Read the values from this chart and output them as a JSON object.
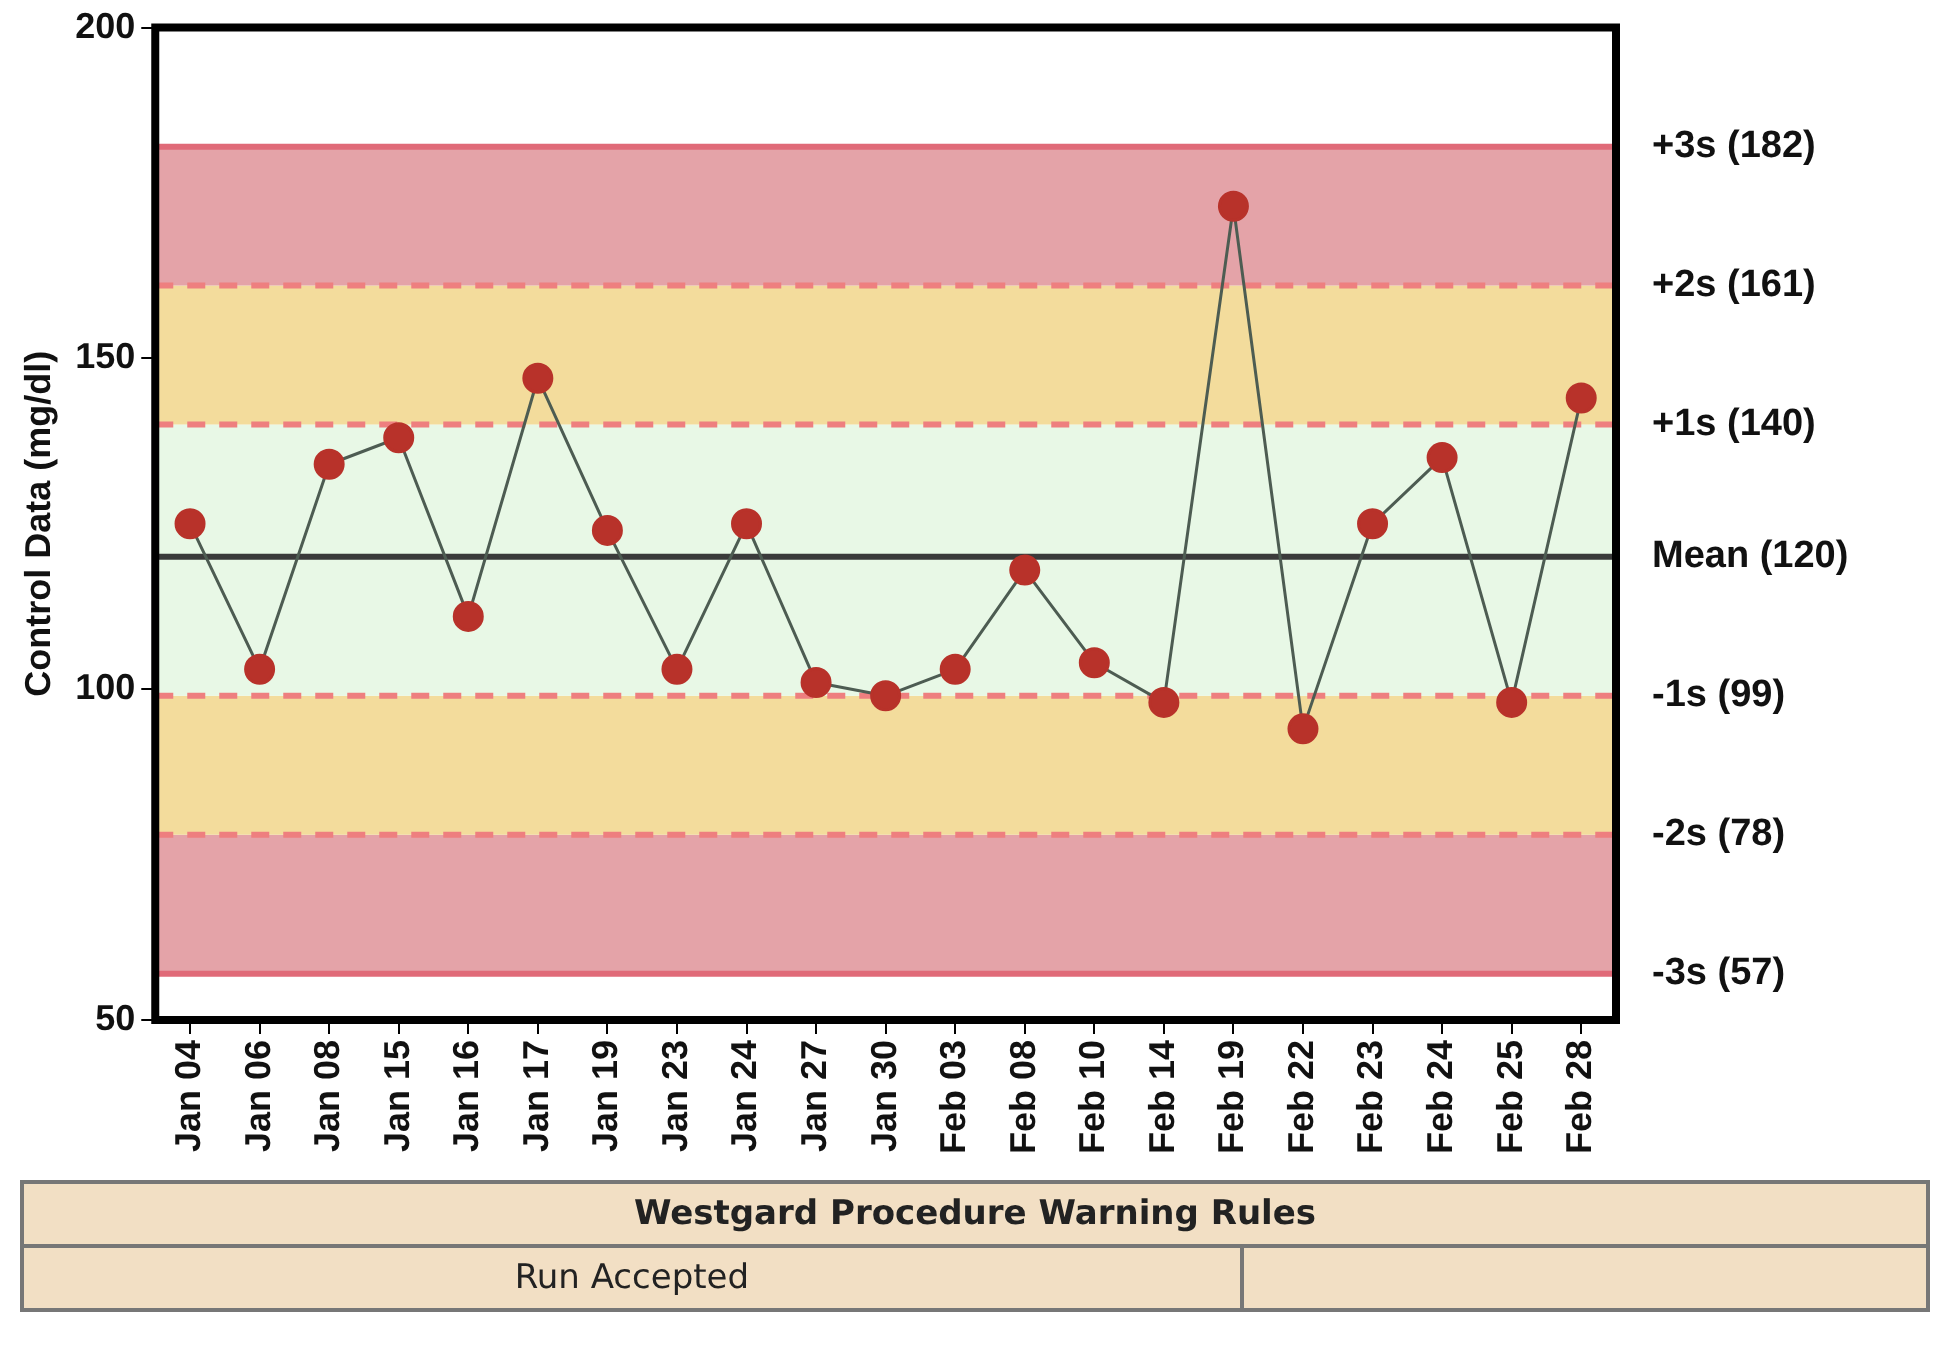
{
  "chart_data": {
    "type": "line",
    "ylabel": "Control Data (mg/dl)",
    "categories": [
      "Jan 04",
      "Jan 06",
      "Jan 08",
      "Jan 15",
      "Jan 16",
      "Jan 17",
      "Jan 19",
      "Jan 23",
      "Jan 24",
      "Jan 27",
      "Jan 30",
      "Feb 03",
      "Feb 08",
      "Feb 10",
      "Feb 14",
      "Feb 19",
      "Feb 22",
      "Feb 23",
      "Feb 24",
      "Feb 25",
      "Feb 28"
    ],
    "series": [
      {
        "color": "#b8322a",
        "values": [
          125,
          103,
          134,
          138,
          111,
          147,
          124,
          103,
          125,
          101,
          99,
          103,
          118,
          104,
          98,
          173,
          94,
          125,
          135,
          98,
          144
        ]
      }
    ],
    "ylim": [
      50,
      200
    ],
    "yticks": [
      50,
      100,
      150,
      200
    ],
    "grid": false,
    "legend": false,
    "marker": "circle",
    "line_style": "solid",
    "bands": [
      {
        "axis": "y",
        "from": 57,
        "to": 78,
        "color": "#e4a3a8"
      },
      {
        "axis": "y",
        "from": 78,
        "to": 99,
        "color": "#f3dc9c"
      },
      {
        "axis": "y",
        "from": 99,
        "to": 140,
        "color": "#e8f8e6"
      },
      {
        "axis": "y",
        "from": 140,
        "to": 161,
        "color": "#f3dc9c"
      },
      {
        "axis": "y",
        "from": 161,
        "to": 182,
        "color": "#e4a3a8"
      }
    ],
    "ref_lines": [
      {
        "axis": "y",
        "value": 182,
        "label": "+3s (182)",
        "color": "#e06a78",
        "line_style": "solid"
      },
      {
        "axis": "y",
        "value": 161,
        "label": "+2s (161)",
        "color": "#ee7f7f",
        "line_style": "dashed"
      },
      {
        "axis": "y",
        "value": 140,
        "label": "+1s (140)",
        "color": "#ee7f7f",
        "line_style": "dashed"
      },
      {
        "axis": "y",
        "value": 120,
        "label": "Mean (120)",
        "color": "#3a3a3a",
        "line_style": "solid"
      },
      {
        "axis": "y",
        "value": 99,
        "label": "-1s (99)",
        "color": "#ee7f7f",
        "line_style": "dashed"
      },
      {
        "axis": "y",
        "value": 78,
        "label": "-2s (78)",
        "color": "#ee7f7f",
        "line_style": "dashed"
      },
      {
        "axis": "y",
        "value": 57,
        "label": "-3s (57)",
        "color": "#e06a78",
        "line_style": "solid"
      }
    ],
    "annotations": [
      "Westgard Procedure Warning Rules",
      "Run Accepted"
    ]
  }
}
